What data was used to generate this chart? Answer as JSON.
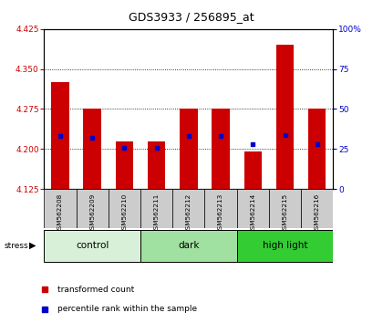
{
  "title": "GDS3933 / 256895_at",
  "samples": [
    "GSM562208",
    "GSM562209",
    "GSM562210",
    "GSM562211",
    "GSM562212",
    "GSM562213",
    "GSM562214",
    "GSM562215",
    "GSM562216"
  ],
  "transformed_counts": [
    4.325,
    4.275,
    4.215,
    4.215,
    4.275,
    4.275,
    4.195,
    4.395,
    4.275
  ],
  "percentile_ranks": [
    33,
    32,
    26,
    26,
    33,
    33,
    28,
    34,
    28
  ],
  "ylim": [
    4.125,
    4.425
  ],
  "yticks": [
    4.125,
    4.2,
    4.275,
    4.35,
    4.425
  ],
  "right_yticks": [
    0,
    25,
    50,
    75,
    100
  ],
  "right_yticklabels": [
    "0",
    "25",
    "50",
    "75",
    "100%"
  ],
  "groups": [
    {
      "label": "control",
      "start": 0,
      "end": 3,
      "color": "#d8f0d8"
    },
    {
      "label": "dark",
      "start": 3,
      "end": 6,
      "color": "#a0e0a0"
    },
    {
      "label": "high light",
      "start": 6,
      "end": 9,
      "color": "#33cc33"
    }
  ],
  "bar_color": "#cc0000",
  "marker_color": "#0000cc",
  "bar_bottom": 4.125,
  "bar_width": 0.55,
  "label_bg_color": "#cccccc",
  "legend_items": [
    {
      "color": "#cc0000",
      "label": "transformed count"
    },
    {
      "color": "#0000cc",
      "label": "percentile rank within the sample"
    }
  ]
}
